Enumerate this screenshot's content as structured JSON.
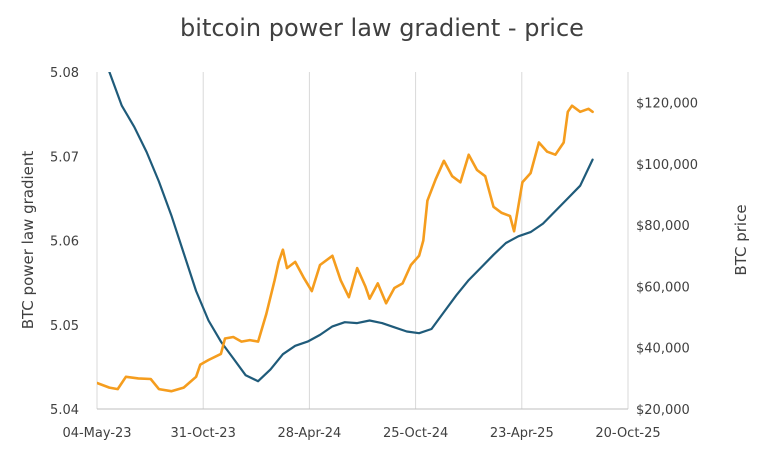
{
  "chart_data": {
    "type": "line",
    "title": "bitcoin power law gradient - price",
    "x_tick_labels": [
      "04-May-23",
      "31-Oct-23",
      "28-Apr-24",
      "25-Oct-24",
      "23-Apr-25",
      "20-Oct-25"
    ],
    "y_left": {
      "label": "BTC power law gradient",
      "range": [
        5.04,
        5.08
      ],
      "ticks": [
        "5.04",
        "5.05",
        "5.06",
        "5.07",
        "5.08"
      ]
    },
    "y_right": {
      "label": "BTC price",
      "range": [
        20000,
        130000
      ],
      "ticks": [
        "$20,000",
        "$40,000",
        "$60,000",
        "$80,000",
        "$100,000",
        "$120,000"
      ]
    },
    "grid": "vertical",
    "legend": "none",
    "series": [
      {
        "axis": "left",
        "color": "#1f5b7a",
        "x": [
          "2023-05-04",
          "2023-05-25",
          "2023-06-15",
          "2023-07-06",
          "2023-07-27",
          "2023-08-17",
          "2023-09-07",
          "2023-09-28",
          "2023-10-19",
          "2023-11-09",
          "2023-11-30",
          "2023-12-21",
          "2024-01-11",
          "2024-02-01",
          "2024-02-22",
          "2024-03-14",
          "2024-04-04",
          "2024-04-25",
          "2024-05-16",
          "2024-06-06",
          "2024-06-27",
          "2024-07-18",
          "2024-08-08",
          "2024-08-29",
          "2024-09-19",
          "2024-10-10",
          "2024-10-31",
          "2024-11-21",
          "2024-12-12",
          "2025-01-02",
          "2025-01-23",
          "2025-02-13",
          "2025-03-06",
          "2025-03-27",
          "2025-04-17",
          "2025-05-08",
          "2025-05-29",
          "2025-06-19",
          "2025-07-10",
          "2025-07-31",
          "2025-08-21"
        ],
        "y": [
          5.083,
          5.08,
          5.076,
          5.0735,
          5.0705,
          5.067,
          5.063,
          5.0585,
          5.054,
          5.0505,
          5.048,
          5.046,
          5.044,
          5.0433,
          5.0447,
          5.0465,
          5.0475,
          5.048,
          5.0488,
          5.0498,
          5.0503,
          5.0502,
          5.0505,
          5.0502,
          5.0497,
          5.0492,
          5.049,
          5.0495,
          5.0515,
          5.0535,
          5.0553,
          5.0568,
          5.0583,
          5.0597,
          5.0605,
          5.061,
          5.062,
          5.0635,
          5.065,
          5.0665,
          5.0696
        ]
      },
      {
        "axis": "right",
        "color": "#f59d1e",
        "x": [
          "2023-05-04",
          "2023-05-25",
          "2023-06-08",
          "2023-06-22",
          "2023-07-13",
          "2023-08-03",
          "2023-08-17",
          "2023-09-07",
          "2023-09-28",
          "2023-10-19",
          "2023-10-26",
          "2023-11-09",
          "2023-11-30",
          "2023-12-07",
          "2023-12-21",
          "2024-01-04",
          "2024-01-18",
          "2024-02-01",
          "2024-02-15",
          "2024-02-29",
          "2024-03-07",
          "2024-03-14",
          "2024-03-21",
          "2024-04-04",
          "2024-04-18",
          "2024-05-02",
          "2024-05-16",
          "2024-06-06",
          "2024-06-20",
          "2024-07-04",
          "2024-07-18",
          "2024-08-01",
          "2024-08-08",
          "2024-08-22",
          "2024-09-05",
          "2024-09-19",
          "2024-10-03",
          "2024-10-17",
          "2024-10-31",
          "2024-11-07",
          "2024-11-14",
          "2024-11-28",
          "2024-12-12",
          "2024-12-26",
          "2025-01-09",
          "2025-01-23",
          "2025-02-06",
          "2025-02-20",
          "2025-03-06",
          "2025-03-20",
          "2025-04-03",
          "2025-04-10",
          "2025-04-24",
          "2025-05-08",
          "2025-05-22",
          "2025-06-05",
          "2025-06-19",
          "2025-07-03",
          "2025-07-10",
          "2025-07-17",
          "2025-07-31",
          "2025-08-14",
          "2025-08-21"
        ],
        "y": [
          28500,
          27000,
          26500,
          30500,
          30000,
          29800,
          26500,
          25800,
          27000,
          30500,
          34500,
          36000,
          38000,
          43000,
          43500,
          42000,
          42500,
          42000,
          51000,
          62000,
          68000,
          72000,
          66000,
          68000,
          63000,
          58500,
          67000,
          70000,
          62000,
          56500,
          66000,
          60000,
          56000,
          61000,
          54500,
          59500,
          61000,
          67000,
          70000,
          75000,
          88000,
          95000,
          101000,
          96000,
          94000,
          103000,
          98000,
          96000,
          86000,
          84000,
          83000,
          78000,
          94000,
          97000,
          107000,
          104000,
          103000,
          107000,
          117000,
          119000,
          117000,
          118000,
          117000
        ]
      }
    ]
  }
}
